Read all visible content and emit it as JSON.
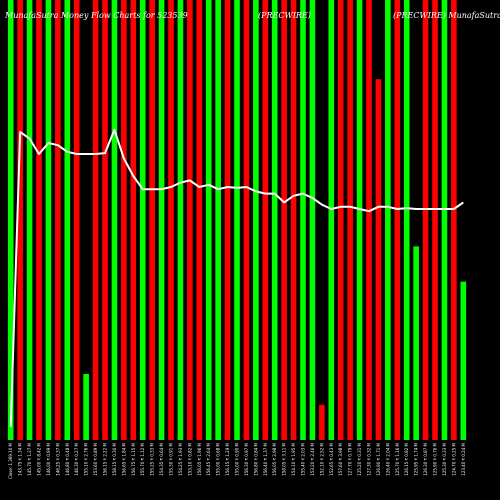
{
  "chart_data": {
    "type": "bar",
    "title": "MunafaSutra Money Flow Charts for 523539",
    "title_left": "MunafaSutra Money Flow Charts for 523539",
    "title_mid": "(PRECWIRE)",
    "title_right": "(PRECWIRE) MunafaSutra",
    "bar_ymax": 100,
    "line_ymin": 0,
    "line_ymax": 100,
    "bars": [
      {
        "color": "green",
        "value": 100
      },
      {
        "color": "red",
        "value": 100
      },
      {
        "color": "green",
        "value": 100
      },
      {
        "color": "red",
        "value": 100
      },
      {
        "color": "green",
        "value": 100
      },
      {
        "color": "red",
        "value": 100
      },
      {
        "color": "green",
        "value": 100
      },
      {
        "color": "red",
        "value": 100
      },
      {
        "color": "green",
        "value": 15
      },
      {
        "color": "red",
        "value": 100
      },
      {
        "color": "red",
        "value": 100
      },
      {
        "color": "green",
        "value": 100
      },
      {
        "color": "red",
        "value": 100
      },
      {
        "color": "red",
        "value": 100
      },
      {
        "color": "green",
        "value": 100
      },
      {
        "color": "red",
        "value": 100
      },
      {
        "color": "green",
        "value": 100
      },
      {
        "color": "red",
        "value": 100
      },
      {
        "color": "green",
        "value": 100
      },
      {
        "color": "red",
        "value": 100
      },
      {
        "color": "red",
        "value": 100
      },
      {
        "color": "green",
        "value": 100
      },
      {
        "color": "green",
        "value": 100
      },
      {
        "color": "red",
        "value": 100
      },
      {
        "color": "green",
        "value": 100
      },
      {
        "color": "red",
        "value": 100
      },
      {
        "color": "green",
        "value": 100
      },
      {
        "color": "red",
        "value": 100
      },
      {
        "color": "green",
        "value": 100
      },
      {
        "color": "red",
        "value": 100
      },
      {
        "color": "red",
        "value": 100
      },
      {
        "color": "green",
        "value": 100
      },
      {
        "color": "green",
        "value": 100
      },
      {
        "color": "red",
        "value": 8
      },
      {
        "color": "green",
        "value": 100
      },
      {
        "color": "red",
        "value": 100
      },
      {
        "color": "red",
        "value": 100
      },
      {
        "color": "green",
        "value": 100
      },
      {
        "color": "red",
        "value": 100
      },
      {
        "color": "red",
        "value": 82
      },
      {
        "color": "green",
        "value": 100
      },
      {
        "color": "red",
        "value": 100
      },
      {
        "color": "green",
        "value": 100
      },
      {
        "color": "green",
        "value": 44
      },
      {
        "color": "red",
        "value": 100
      },
      {
        "color": "red",
        "value": 100
      },
      {
        "color": "green",
        "value": 100
      },
      {
        "color": "red",
        "value": 100
      },
      {
        "color": "green",
        "value": 36
      }
    ],
    "line": [
      3,
      70,
      68.5,
      65,
      67.5,
      67,
      65.5,
      65,
      65,
      65,
      65.2,
      70.5,
      64,
      60,
      57,
      57,
      57,
      57.5,
      58.5,
      59,
      57.5,
      58,
      57,
      57.5,
      57.3,
      57.5,
      56.5,
      56,
      56,
      54,
      55.5,
      56,
      55,
      53.5,
      52.5,
      53,
      53,
      52.5,
      52,
      53,
      53,
      52.5,
      52.7,
      52.5,
      52.5,
      52.5,
      52.5,
      52.5,
      54
    ],
    "ticks": [
      "Close: 1,369.10 M",
      "143.75 ₹ 1.34 M",
      "145.70 ₹ 1.27 M",
      "145.00 ₹ 8.42 M",
      "146.00 ₹ 0.99 M",
      "146.25 ₹ 0.37 M",
      "146.80 ₹ 0.48 M",
      "146.30 ₹ 0.27 M",
      "155.10 ₹ 2.76 M",
      "153.60 ₹ 0.89 M",
      "156.15 ₹ 2.22 M",
      "158.15 ₹ 0.30 M",
      "156.65 ₹ 1.84 M",
      "156.75 ₹ 1.15 M",
      "155.70 ₹ 1.12 M",
      "155.25 ₹ 0.33 M",
      "154.35 ₹ 0.64 M",
      "155.30 ₹ 0.91 M",
      "154.25 ₹ 1.93 M",
      "153.10 ₹ 0.82 M",
      "156.05 ₹ 1.96 M",
      "156.45 ₹ 2.64 M",
      "155.00 ₹ 0.68 M",
      "156.15 ₹ 1.29 M",
      "155.00 ₹ 0.90 M",
      "156.30 ₹ 0.97 M",
      "156.80 ₹ 0.84 M",
      "156.40 ₹ 1.37 M",
      "156.05 ₹ 2.98 M",
      "158.05 ₹ 3.11 M",
      "154.10 ₹ 1.95 M",
      "155.40 ₹ 2.03 M",
      "153.20 ₹ 2.46 M",
      "152.10 ₹ 2.52 M",
      "152.65 ₹ 0.43 M",
      "157.60 ₹ 3.98 M",
      "127.70 ₹ 0.79 M",
      "125.20 ₹ 0.31 M",
      "127.30 ₹ 0.32 M",
      "126.90 ₹ 1.71 M",
      "126.40 ₹ 2.04 M",
      "125.70 ₹ 1.16 M",
      "126.15 ₹ 0.82 M",
      "125.95 ₹ 1.74 M",
      "126.30 ₹ 0.87 M",
      "125.90 ₹ 0.76 M",
      "125.30 ₹ 0.33 M",
      "124.70 ₹ 0.25 M",
      "123.40 ₹ 0.24 M"
    ],
    "colors": {
      "green": "#00ff00",
      "red": "#ff0000",
      "line": "#ffffff",
      "background": "#000000"
    }
  }
}
